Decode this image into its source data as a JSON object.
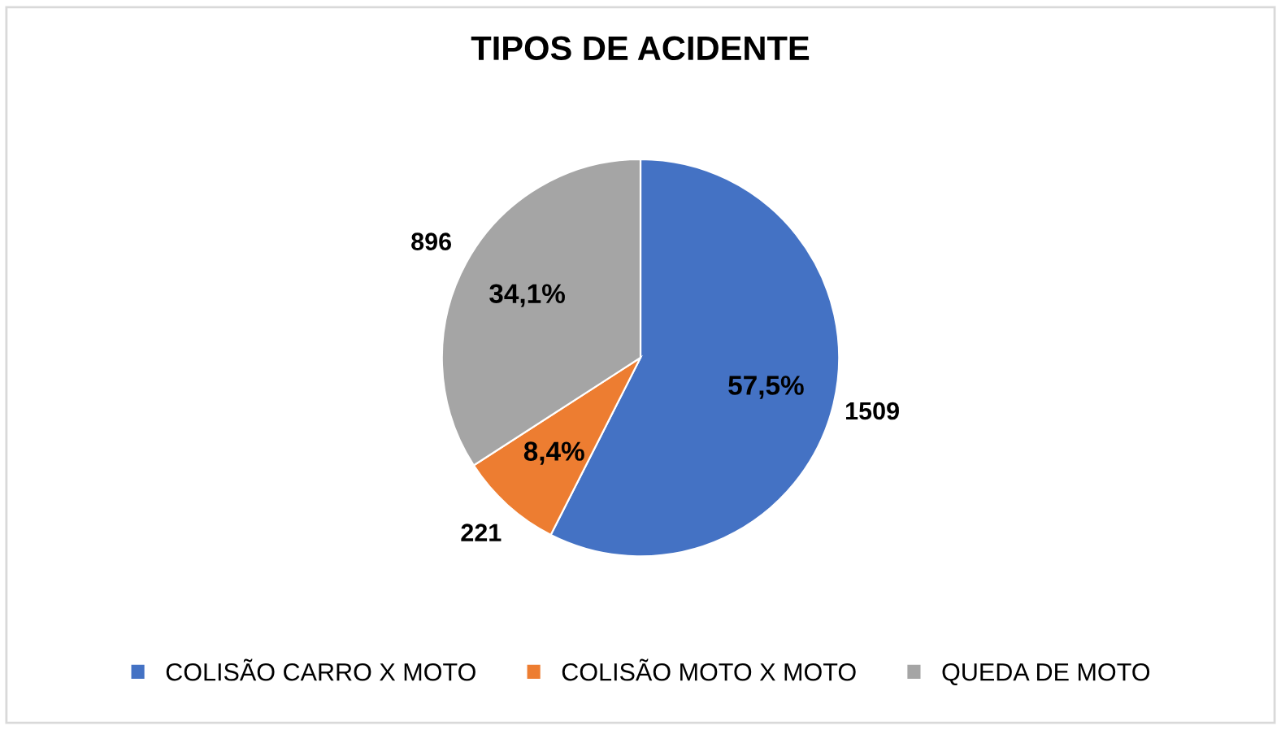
{
  "chart_data": {
    "type": "pie",
    "title": "TIPOS DE ACIDENTE",
    "categories": [
      "COLISÃO CARRO X MOTO",
      "COLISÃO MOTO X MOTO",
      "QUEDA DE MOTO"
    ],
    "values": [
      1509,
      221,
      896
    ],
    "colors": [
      "#4472c4",
      "#ed7d31",
      "#a5a5a5"
    ],
    "data_labels": true,
    "annotations": [
      "57,5%",
      "8,4%",
      "34,1%"
    ],
    "legend": "bottom"
  }
}
